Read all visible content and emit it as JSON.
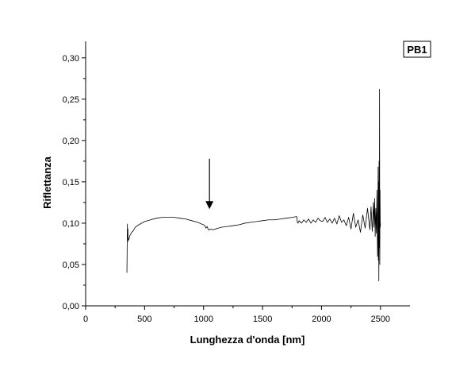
{
  "chart_data": {
    "type": "line",
    "panel_label": "PB1",
    "xlabel": "Lunghezza d'onda [nm]",
    "ylabel": "Riflettanza",
    "xlim": [
      0,
      2750
    ],
    "ylim": [
      0,
      0.32
    ],
    "x_ticks": [
      0,
      500,
      1000,
      1500,
      2000,
      2500
    ],
    "x_tick_labels": [
      "0",
      "500",
      "1000",
      "1500",
      "2000",
      "2500"
    ],
    "y_ticks": [
      0.0,
      0.05,
      0.1,
      0.15,
      0.2,
      0.25,
      0.3
    ],
    "y_tick_labels": [
      "0,00",
      "0,05",
      "0,10",
      "0,15",
      "0,20",
      "0,25",
      "0,30"
    ],
    "grid": false,
    "legend": "none",
    "annotations": [
      {
        "type": "arrow-down",
        "x": 1050,
        "y_from": 0.178,
        "y_to": 0.117
      }
    ],
    "series": [
      {
        "color": "#000000",
        "x": [
          350,
          352,
          354,
          356,
          358,
          360,
          362,
          365,
          370,
          375,
          380,
          390,
          400,
          420,
          450,
          500,
          550,
          600,
          650,
          700,
          750,
          800,
          850,
          900,
          950,
          1000,
          1010,
          1020,
          1030,
          1040,
          1050,
          1060,
          1080,
          1100,
          1150,
          1200,
          1250,
          1300,
          1350,
          1400,
          1450,
          1500,
          1550,
          1600,
          1650,
          1700,
          1750,
          1790,
          1795,
          1800,
          1810,
          1830,
          1850,
          1870,
          1890,
          1910,
          1930,
          1950,
          1970,
          1990,
          2010,
          2030,
          2050,
          2070,
          2090,
          2110,
          2130,
          2150,
          2170,
          2190,
          2210,
          2230,
          2250,
          2270,
          2290,
          2310,
          2330,
          2350,
          2370,
          2390,
          2410,
          2420,
          2430,
          2440,
          2445,
          2450,
          2455,
          2460,
          2465,
          2470,
          2475,
          2478,
          2480,
          2482,
          2484,
          2486,
          2488,
          2490,
          2492,
          2494,
          2496,
          2498,
          2500
        ],
        "y": [
          0.04,
          0.07,
          0.099,
          0.082,
          0.093,
          0.078,
          0.081,
          0.08,
          0.082,
          0.085,
          0.086,
          0.089,
          0.09,
          0.095,
          0.098,
          0.102,
          0.104,
          0.106,
          0.107,
          0.107,
          0.107,
          0.106,
          0.105,
          0.103,
          0.101,
          0.098,
          0.097,
          0.094,
          0.096,
          0.092,
          0.092,
          0.093,
          0.092,
          0.093,
          0.095,
          0.096,
          0.097,
          0.098,
          0.1,
          0.101,
          0.102,
          0.103,
          0.104,
          0.104,
          0.105,
          0.106,
          0.107,
          0.108,
          0.101,
          0.1,
          0.103,
          0.1,
          0.104,
          0.101,
          0.105,
          0.1,
          0.104,
          0.101,
          0.106,
          0.103,
          0.102,
          0.107,
          0.101,
          0.105,
          0.1,
          0.106,
          0.099,
          0.109,
          0.101,
          0.104,
          0.097,
          0.107,
          0.093,
          0.112,
          0.095,
          0.104,
          0.089,
          0.11,
          0.094,
          0.118,
          0.092,
          0.12,
          0.09,
          0.125,
          0.095,
          0.13,
          0.084,
          0.118,
          0.088,
          0.14,
          0.06,
          0.095,
          0.168,
          0.055,
          0.15,
          0.03,
          0.175,
          0.07,
          0.262,
          0.05,
          0.14,
          0.095,
          0.1
        ]
      }
    ]
  }
}
